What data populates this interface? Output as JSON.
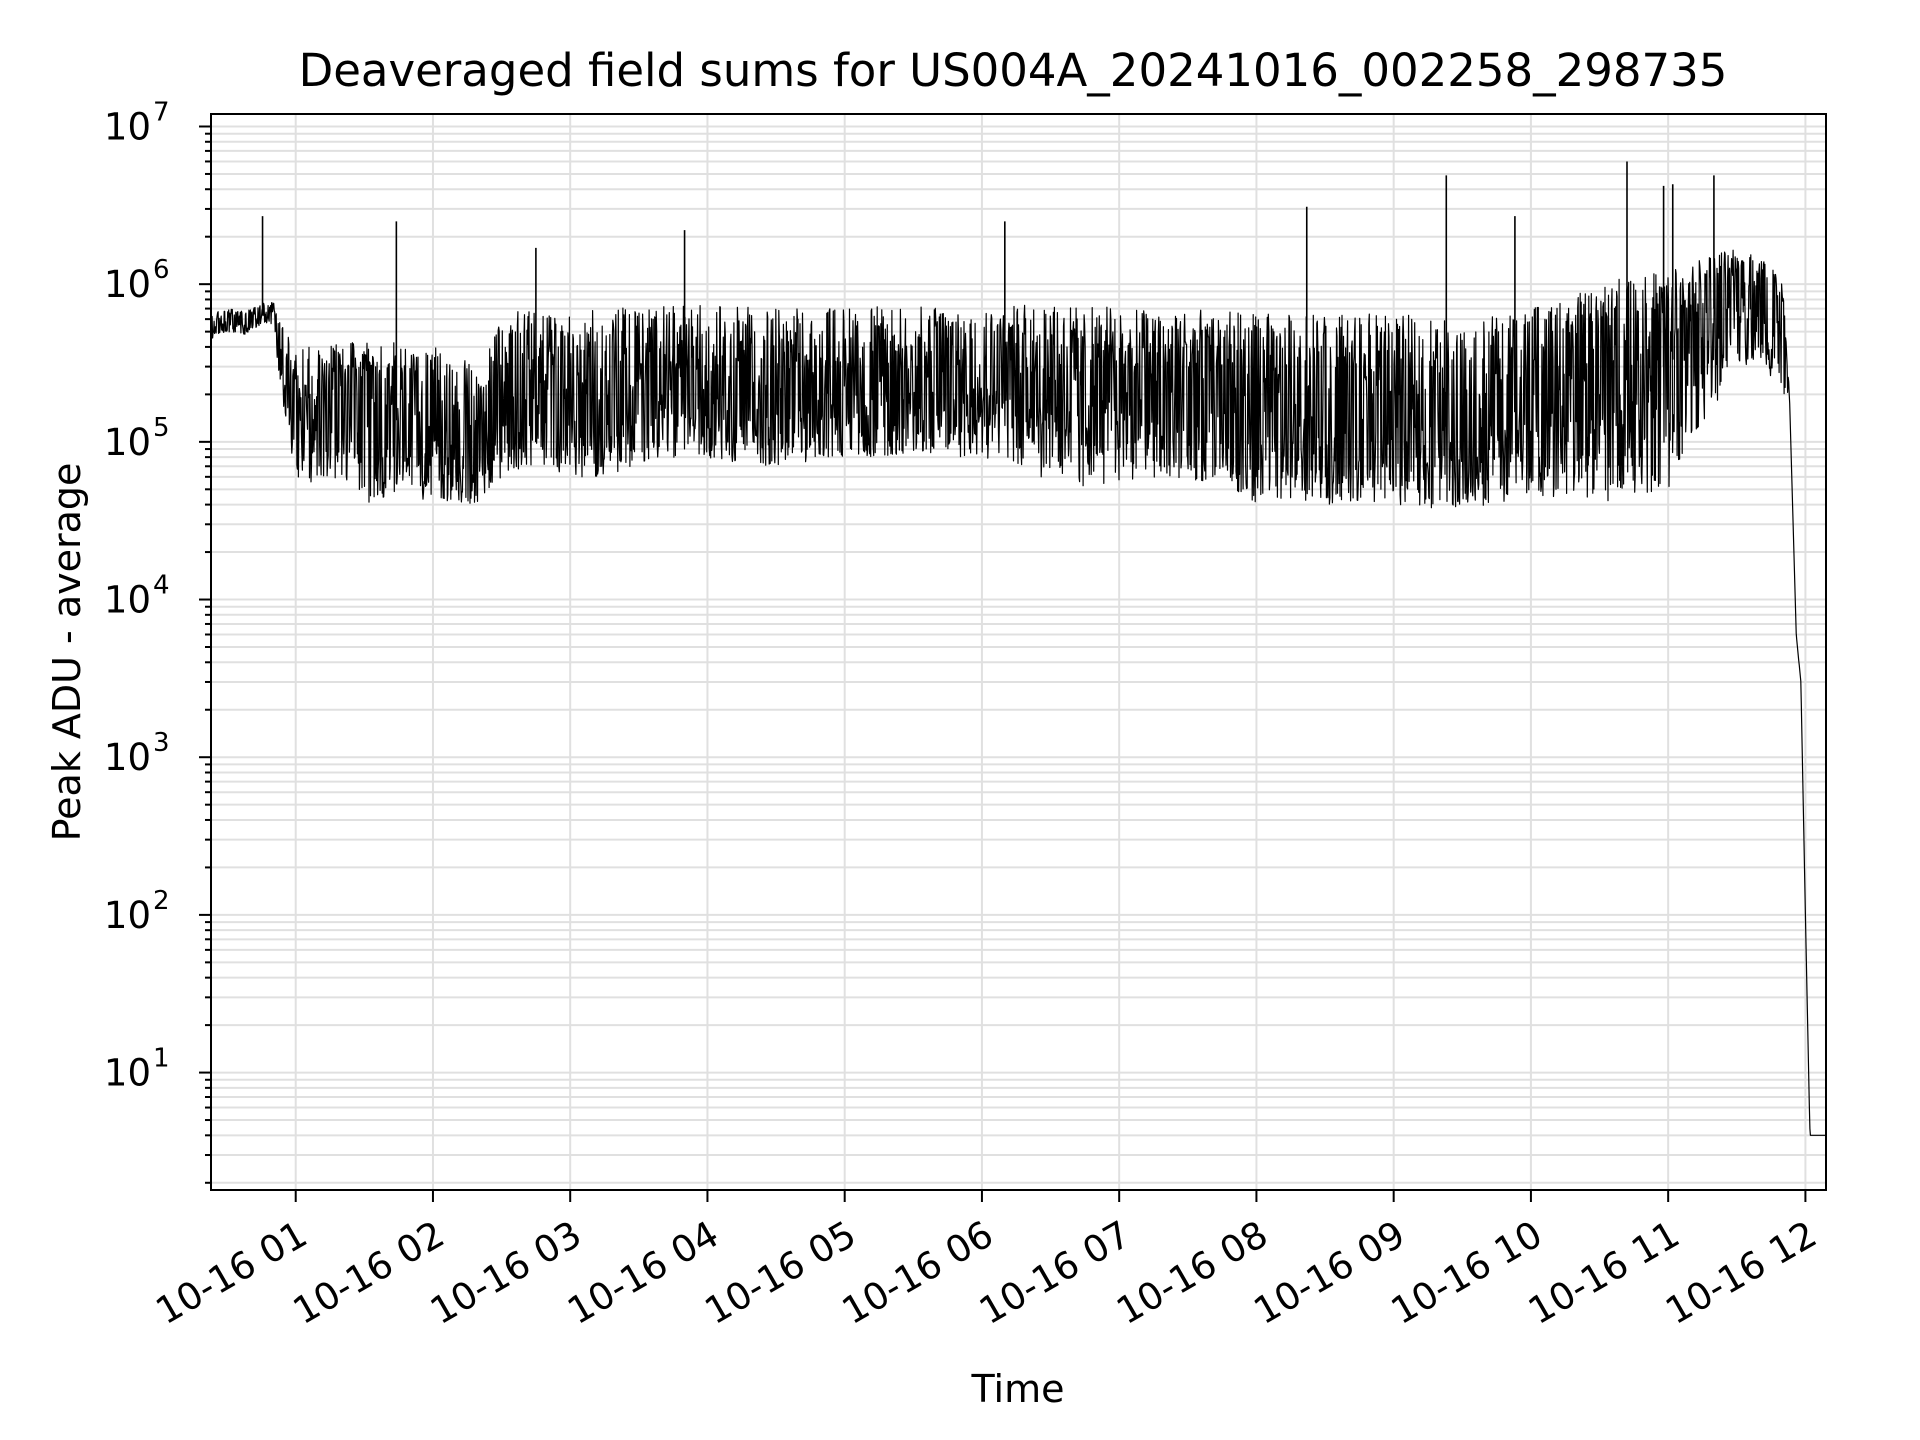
{
  "chart_data": {
    "type": "line",
    "title": "Deaveraged field sums for US004A_20241016_002258_298735",
    "xlabel": "Time",
    "ylabel": "Peak ADU - average",
    "yscale": "log",
    "ylim": [
      1.8,
      12000000
    ],
    "xlim": [
      "2024-10-16T00:22:58",
      "2024-10-16T12:09:00"
    ],
    "grid": true,
    "colors": {
      "line": "#000000",
      "grid": "#e0e0e0",
      "axes": "#000000"
    },
    "x_ticks": [
      {
        "label": "10-16 01",
        "time": "2024-10-16T01:00:00"
      },
      {
        "label": "10-16 02",
        "time": "2024-10-16T02:00:00"
      },
      {
        "label": "10-16 03",
        "time": "2024-10-16T03:00:00"
      },
      {
        "label": "10-16 04",
        "time": "2024-10-16T04:00:00"
      },
      {
        "label": "10-16 05",
        "time": "2024-10-16T05:00:00"
      },
      {
        "label": "10-16 06",
        "time": "2024-10-16T06:00:00"
      },
      {
        "label": "10-16 07",
        "time": "2024-10-16T07:00:00"
      },
      {
        "label": "10-16 08",
        "time": "2024-10-16T08:00:00"
      },
      {
        "label": "10-16 09",
        "time": "2024-10-16T09:00:00"
      },
      {
        "label": "10-16 10",
        "time": "2024-10-16T10:00:00"
      },
      {
        "label": "10-16 11",
        "time": "2024-10-16T11:00:00"
      },
      {
        "label": "10-16 12",
        "time": "2024-10-16T12:00:00"
      }
    ],
    "y_ticks": [
      {
        "base": "10",
        "exp": "1",
        "value": 10
      },
      {
        "base": "10",
        "exp": "2",
        "value": 100
      },
      {
        "base": "10",
        "exp": "3",
        "value": 1000
      },
      {
        "base": "10",
        "exp": "4",
        "value": 10000
      },
      {
        "base": "10",
        "exp": "5",
        "value": 100000
      },
      {
        "base": "10",
        "exp": "6",
        "value": 1000000
      },
      {
        "base": "10",
        "exp": "7",
        "value": 10000000
      }
    ],
    "series": [
      {
        "x": [
          "2024-10-16T00:23:00",
          "2024-10-16T00:30:00",
          "2024-10-16T00:38:00",
          "2024-10-16T00:45:00",
          "2024-10-16T00:50:00",
          "2024-10-16T00:55:00",
          "2024-10-16T01:00:00",
          "2024-10-16T01:10:00",
          "2024-10-16T01:20:00",
          "2024-10-16T01:30:00",
          "2024-10-16T01:40:00",
          "2024-10-16T01:50:00",
          "2024-10-16T02:00:00",
          "2024-10-16T02:10:00",
          "2024-10-16T02:20:00",
          "2024-10-16T02:30:00",
          "2024-10-16T02:40:00",
          "2024-10-16T02:50:00",
          "2024-10-16T03:00:00",
          "2024-10-16T03:15:00",
          "2024-10-16T03:30:00",
          "2024-10-16T03:45:00",
          "2024-10-16T04:00:00",
          "2024-10-16T04:15:00",
          "2024-10-16T04:30:00",
          "2024-10-16T04:45:00",
          "2024-10-16T05:00:00",
          "2024-10-16T05:15:00",
          "2024-10-16T05:30:00",
          "2024-10-16T05:45:00",
          "2024-10-16T06:00:00",
          "2024-10-16T06:15:00",
          "2024-10-16T06:30:00",
          "2024-10-16T06:45:00",
          "2024-10-16T07:00:00",
          "2024-10-16T07:15:00",
          "2024-10-16T07:30:00",
          "2024-10-16T07:45:00",
          "2024-10-16T08:00:00",
          "2024-10-16T08:15:00",
          "2024-10-16T08:30:00",
          "2024-10-16T08:45:00",
          "2024-10-16T09:00:00",
          "2024-10-16T09:15:00",
          "2024-10-16T09:30:00",
          "2024-10-16T09:45:00",
          "2024-10-16T10:00:00",
          "2024-10-16T10:15:00",
          "2024-10-16T10:30:00",
          "2024-10-16T10:45:00",
          "2024-10-16T11:00:00",
          "2024-10-16T11:10:00",
          "2024-10-16T11:20:00",
          "2024-10-16T11:30:00",
          "2024-10-16T11:40:00",
          "2024-10-16T11:45:00",
          "2024-10-16T11:50:00",
          "2024-10-16T11:53:00",
          "2024-10-16T11:56:00",
          "2024-10-16T11:58:00",
          "2024-10-16T12:00:00",
          "2024-10-16T12:02:00",
          "2024-10-16T12:09:00"
        ],
        "y": [
          550000,
          600000,
          580000,
          650000,
          700000,
          300000,
          200000,
          150000,
          200000,
          180000,
          150000,
          120000,
          110000,
          100000,
          80000,
          150000,
          200000,
          180000,
          150000,
          140000,
          200000,
          220000,
          250000,
          200000,
          180000,
          190000,
          200000,
          220000,
          250000,
          230000,
          240000,
          250000,
          240000,
          200000,
          220000,
          230000,
          220000,
          200000,
          120000,
          130000,
          140000,
          150000,
          140000,
          130000,
          120000,
          150000,
          180000,
          200000,
          250000,
          300000,
          300000,
          500000,
          700000,
          900000,
          850000,
          800000,
          700000,
          200000,
          6000,
          3000,
          100,
          4,
          4
        ],
        "low": [
          450000,
          500000,
          480000,
          550000,
          550000,
          150000,
          60000,
          50000,
          60000,
          40000,
          45000,
          40000,
          45000,
          40000,
          40000,
          60000,
          70000,
          70000,
          60000,
          60000,
          70000,
          80000,
          80000,
          70000,
          70000,
          75000,
          80000,
          80000,
          85000,
          80000,
          80000,
          70000,
          55000,
          50000,
          55000,
          60000,
          55000,
          55000,
          40000,
          40000,
          40000,
          42000,
          40000,
          38000,
          38000,
          40000,
          45000,
          45000,
          40000,
          45000,
          50000,
          100000,
          150000,
          300000,
          300000,
          250000,
          200000,
          200000,
          6000,
          3000,
          100,
          4,
          4
        ],
        "high": [
          650000,
          700000,
          680000,
          750000,
          800000,
          500000,
          400000,
          400000,
          450000,
          420000,
          450000,
          400000,
          400000,
          350000,
          300000,
          600000,
          700000,
          650000,
          650000,
          700000,
          720000,
          730000,
          750000,
          720000,
          700000,
          710000,
          720000,
          720000,
          720000,
          720000,
          730000,
          740000,
          740000,
          720000,
          720000,
          700000,
          700000,
          680000,
          650000,
          650000,
          660000,
          650000,
          640000,
          630000,
          620000,
          640000,
          700000,
          800000,
          1000000,
          1200000,
          1200000,
          1400000,
          1600000,
          1800000,
          1500000,
          1300000,
          1100000,
          200000,
          6000,
          3000,
          100,
          4,
          4
        ]
      }
    ],
    "spikes": [
      {
        "x": "2024-10-16T00:45:30",
        "y": 2700000
      },
      {
        "x": "2024-10-16T01:44:00",
        "y": 2500000
      },
      {
        "x": "2024-10-16T02:45:00",
        "y": 1700000
      },
      {
        "x": "2024-10-16T03:50:00",
        "y": 2200000
      },
      {
        "x": "2024-10-16T06:10:00",
        "y": 2500000
      },
      {
        "x": "2024-10-16T08:22:00",
        "y": 3100000
      },
      {
        "x": "2024-10-16T09:23:00",
        "y": 4900000
      },
      {
        "x": "2024-10-16T09:53:00",
        "y": 2700000
      },
      {
        "x": "2024-10-16T10:42:00",
        "y": 6000000
      },
      {
        "x": "2024-10-16T10:58:00",
        "y": 4200000
      },
      {
        "x": "2024-10-16T11:02:00",
        "y": 4300000
      },
      {
        "x": "2024-10-16T11:20:00",
        "y": 4900000
      }
    ]
  }
}
